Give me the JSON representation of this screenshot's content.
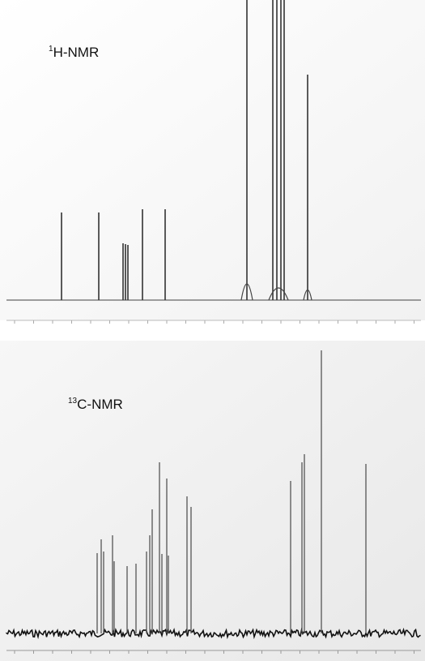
{
  "panels": [
    {
      "title": {
        "sup": "1",
        "text": "H-NMR"
      }
    },
    {
      "title": {
        "sup": "13",
        "text": "C-NMR"
      }
    }
  ]
}
